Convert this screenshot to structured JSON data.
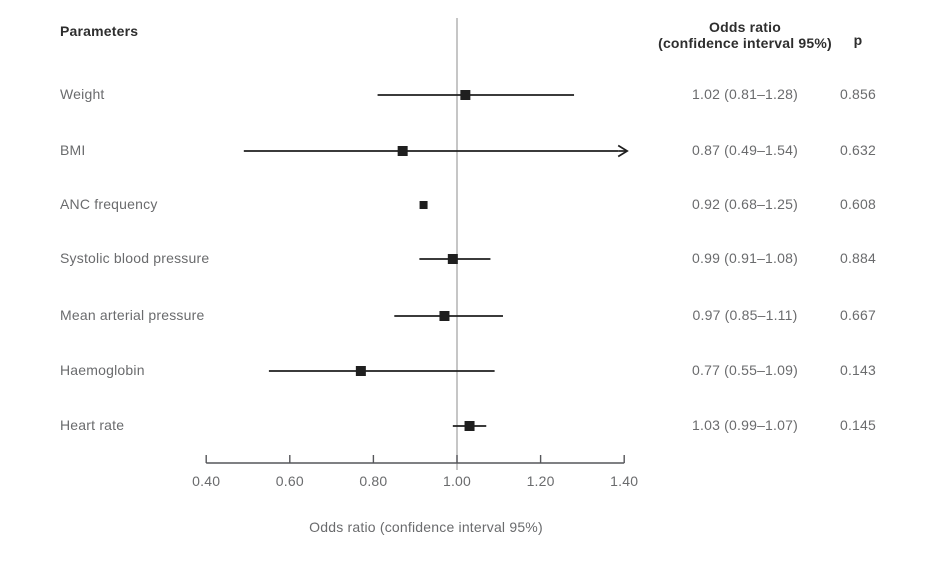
{
  "header": {
    "parameters": "Parameters",
    "or_line1": "Odds ratio",
    "or_line2": "(confidence interval 95%)",
    "p": "p"
  },
  "chart_data": {
    "type": "forest",
    "title": "",
    "xlabel": "Odds ratio (confidence interval 95%)",
    "xlim": [
      0.4,
      1.4
    ],
    "reference_line": 1.0,
    "x_ticks": [
      0.4,
      0.6,
      0.8,
      1.0,
      1.2,
      1.4
    ],
    "x_tick_labels": [
      "0.40",
      "0.60",
      "0.80",
      "1.00",
      "1.20",
      "1.40"
    ],
    "grid": false,
    "rows": [
      {
        "label": "Weight",
        "or": 1.02,
        "ci_low": 0.81,
        "ci_high": 1.28,
        "or_text": "1.02 (0.81–1.28)",
        "p_text": "0.856",
        "clipped_right": false,
        "ci_line": true
      },
      {
        "label": "BMI",
        "or": 0.87,
        "ci_low": 0.49,
        "ci_high": 1.54,
        "or_text": "0.87 (0.49–1.54)",
        "p_text": "0.632",
        "clipped_right": true,
        "ci_line": true
      },
      {
        "label": "ANC frequency",
        "or": 0.92,
        "ci_low": 0.68,
        "ci_high": 1.25,
        "or_text": "0.92 (0.68–1.25)",
        "p_text": "0.608",
        "clipped_right": false,
        "ci_line": false
      },
      {
        "label": "Systolic blood pressure",
        "or": 0.99,
        "ci_low": 0.91,
        "ci_high": 1.08,
        "or_text": "0.99 (0.91–1.08)",
        "p_text": "0.884",
        "clipped_right": false,
        "ci_line": true
      },
      {
        "label": "Mean arterial pressure",
        "or": 0.97,
        "ci_low": 0.85,
        "ci_high": 1.11,
        "or_text": "0.97 (0.85–1.11)",
        "p_text": "0.667",
        "clipped_right": false,
        "ci_line": true
      },
      {
        "label": "Haemoglobin",
        "or": 0.77,
        "ci_low": 0.55,
        "ci_high": 1.09,
        "or_text": "0.77 (0.55–1.09)",
        "p_text": "0.143",
        "clipped_right": false,
        "ci_line": true
      },
      {
        "label": "Heart rate",
        "or": 1.03,
        "ci_low": 0.99,
        "ci_high": 1.07,
        "or_text": "1.03 (0.99–1.07)",
        "p_text": "0.145",
        "clipped_right": false,
        "ci_line": true
      }
    ]
  },
  "colors": {
    "header_text": "#2e2e2e",
    "body_text": "#6a6b6d",
    "marker_and_ci": "#1f1f1f",
    "axis": "#55565a",
    "reference_line": "#a8a8a8"
  }
}
